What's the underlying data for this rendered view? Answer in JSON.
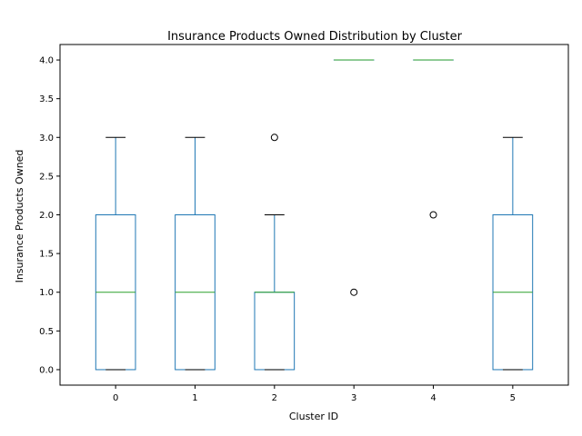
{
  "chart_data": {
    "type": "box",
    "title": "Insurance Products Owned Distribution by Cluster",
    "xlabel": "Cluster ID",
    "ylabel": "Insurance Products Owned",
    "ylim": [
      -0.2,
      4.2
    ],
    "yticks": [
      0.0,
      0.5,
      1.0,
      1.5,
      2.0,
      2.5,
      3.0,
      3.5,
      4.0
    ],
    "ytick_labels": [
      "0.0",
      "0.5",
      "1.0",
      "1.5",
      "2.0",
      "2.5",
      "3.0",
      "3.5",
      "4.0"
    ],
    "grid": false,
    "categories": [
      "0",
      "1",
      "2",
      "3",
      "4",
      "5"
    ],
    "boxes": [
      {
        "cluster": "0",
        "whislo": 0,
        "q1": 0,
        "med": 1,
        "q3": 2,
        "whishi": 3,
        "fliers": []
      },
      {
        "cluster": "1",
        "whislo": 0,
        "q1": 0,
        "med": 1,
        "q3": 2,
        "whishi": 3,
        "fliers": []
      },
      {
        "cluster": "2",
        "whislo": 0,
        "q1": 0,
        "med": 1,
        "q3": 1,
        "whishi": 2,
        "fliers": [
          3
        ]
      },
      {
        "cluster": "3",
        "whislo": 4,
        "q1": 4,
        "med": 4,
        "q3": 4,
        "whishi": 4,
        "fliers": [
          1
        ]
      },
      {
        "cluster": "4",
        "whislo": 4,
        "q1": 4,
        "med": 4,
        "q3": 4,
        "whishi": 4,
        "fliers": [
          2
        ]
      },
      {
        "cluster": "5",
        "whislo": 0,
        "q1": 0,
        "med": 1,
        "q3": 2,
        "whishi": 3,
        "fliers": []
      }
    ],
    "colors": {
      "box": "#1f77b4",
      "median": "#2ca02c",
      "cap": "#000000",
      "flier": "#000000",
      "axis": "#000000"
    }
  }
}
